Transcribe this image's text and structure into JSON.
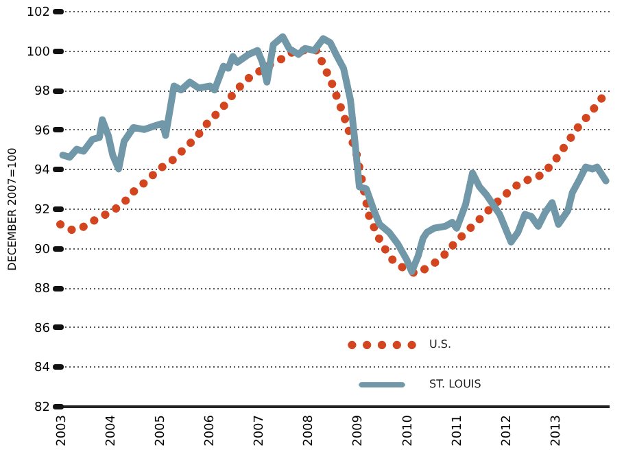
{
  "chart_data": {
    "type": "line",
    "ylabel": "DECEMBER 2007=100",
    "xlim": [
      2003,
      2014.1
    ],
    "xticks": [
      2003,
      2004,
      2005,
      2006,
      2007,
      2008,
      2009,
      2010,
      2011,
      2012,
      2013
    ],
    "ylim": [
      82,
      102
    ],
    "yticks": [
      82,
      84,
      86,
      88,
      90,
      92,
      94,
      96,
      98,
      100,
      102
    ],
    "grid": "y",
    "legend": "bottom",
    "series": [
      {
        "name": "U.S.",
        "color": "#d2451e",
        "line_style": "dotted",
        "x": [
          2003.0,
          2003.25,
          2003.5,
          2003.75,
          2004.0,
          2004.25,
          2004.5,
          2004.75,
          2005.0,
          2005.25,
          2005.5,
          2005.75,
          2006.0,
          2006.25,
          2006.5,
          2006.75,
          2007.0,
          2007.25,
          2007.5,
          2007.75,
          2008.0,
          2008.19,
          2008.5,
          2008.75,
          2009.0,
          2009.25,
          2009.5,
          2009.75,
          2010.0,
          2010.2,
          2010.5,
          2010.75,
          2011.0,
          2011.25,
          2011.5,
          2011.74,
          2012.0,
          2012.25,
          2012.5,
          2012.75,
          2013.0,
          2013.25,
          2013.5,
          2013.75,
          2013.96
        ],
        "values": [
          91.2,
          90.9,
          91.1,
          91.5,
          91.8,
          92.2,
          92.9,
          93.4,
          94.0,
          94.4,
          95.0,
          95.6,
          96.4,
          97.0,
          97.8,
          98.5,
          98.9,
          99.3,
          99.6,
          100.0,
          100.0,
          100.0,
          98.3,
          96.6,
          94.7,
          91.6,
          90.2,
          89.3,
          88.9,
          88.7,
          89.1,
          89.6,
          90.3,
          90.9,
          91.5,
          92.1,
          92.7,
          93.2,
          93.5,
          93.7,
          94.4,
          95.3,
          96.2,
          96.9,
          97.6
        ]
      },
      {
        "name": "ST. LOUIS",
        "color": "#7098a8",
        "line_style": "solid",
        "x": [
          2003.05,
          2003.19,
          2003.33,
          2003.47,
          2003.65,
          2003.79,
          2003.85,
          2003.97,
          2004.06,
          2004.18,
          2004.29,
          2004.48,
          2004.7,
          2004.93,
          2005.07,
          2005.13,
          2005.3,
          2005.44,
          2005.62,
          2005.8,
          2006.03,
          2006.12,
          2006.3,
          2006.4,
          2006.49,
          2006.58,
          2006.81,
          2006.99,
          2007.09,
          2007.18,
          2007.31,
          2007.5,
          2007.63,
          2007.82,
          2007.95,
          2008.14,
          2008.32,
          2008.46,
          2008.6,
          2008.73,
          2008.87,
          2008.96,
          2009.05,
          2009.19,
          2009.33,
          2009.46,
          2009.65,
          2009.83,
          2010.01,
          2010.11,
          2010.24,
          2010.34,
          2010.42,
          2010.56,
          2010.79,
          2010.93,
          2011.02,
          2011.2,
          2011.34,
          2011.48,
          2011.62,
          2011.89,
          2012.12,
          2012.26,
          2012.4,
          2012.53,
          2012.67,
          2012.81,
          2012.95,
          2013.08,
          2013.27,
          2013.36,
          2013.49,
          2013.63,
          2013.77,
          2013.86,
          2014.04
        ],
        "values": [
          94.7,
          94.6,
          95.0,
          94.9,
          95.5,
          95.6,
          96.5,
          95.7,
          94.7,
          94.0,
          95.4,
          96.1,
          96.0,
          96.2,
          96.3,
          95.7,
          98.2,
          98.0,
          98.4,
          98.1,
          98.2,
          98.0,
          99.2,
          99.1,
          99.7,
          99.4,
          99.8,
          100.0,
          99.4,
          98.4,
          100.3,
          100.7,
          100.1,
          99.8,
          100.1,
          100.0,
          100.6,
          100.4,
          99.7,
          99.1,
          97.5,
          95.4,
          93.1,
          93.0,
          92.0,
          91.2,
          90.8,
          90.2,
          89.4,
          88.8,
          89.6,
          90.5,
          90.8,
          91.0,
          91.1,
          91.3,
          91.0,
          92.2,
          93.8,
          93.1,
          92.7,
          91.7,
          90.3,
          90.8,
          91.7,
          91.6,
          91.1,
          91.8,
          92.3,
          91.2,
          91.9,
          92.8,
          93.4,
          94.1,
          94.0,
          94.1,
          93.4
        ]
      }
    ]
  }
}
